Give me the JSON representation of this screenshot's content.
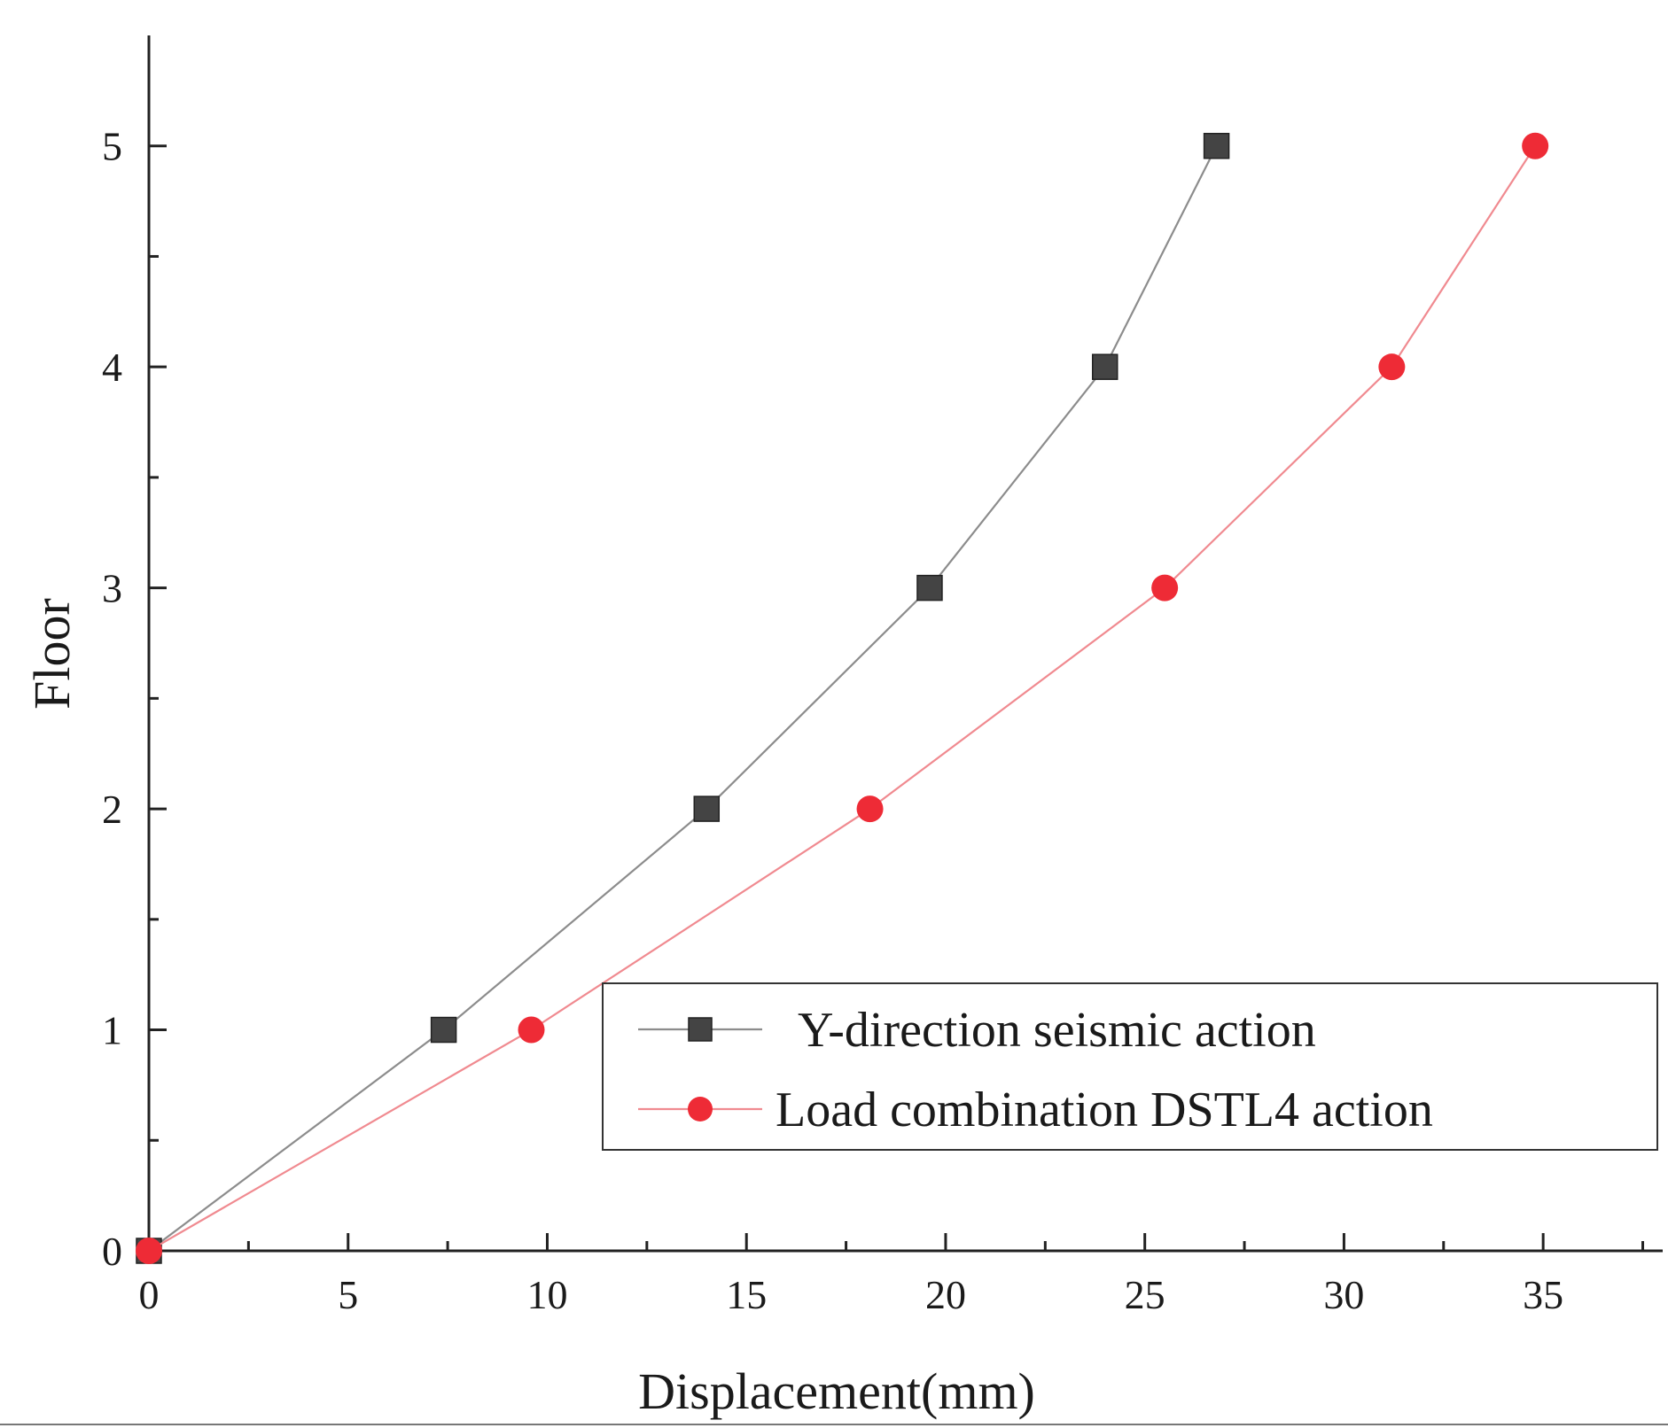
{
  "chart_data": {
    "type": "line",
    "title": "",
    "xlabel": "Displacement(mm)",
    "ylabel": "Floor",
    "xlim": [
      0,
      38
    ],
    "ylim": [
      0,
      5.5
    ],
    "x_ticks": [
      0,
      5,
      10,
      15,
      20,
      25,
      30,
      35
    ],
    "y_ticks": [
      0,
      1,
      2,
      3,
      4,
      5
    ],
    "grid": false,
    "legend_position": "bottom-right",
    "series": [
      {
        "name": "Y-direction seismic action",
        "marker": "square",
        "color": "#444444",
        "line_color": "#8c8c8c",
        "x": [
          0,
          7.4,
          14.0,
          19.6,
          24.0,
          26.8
        ],
        "y": [
          0,
          1,
          2,
          3,
          4,
          5
        ]
      },
      {
        "name": "Load combination DSTL4 action",
        "marker": "circle",
        "color": "#ee2b36",
        "line_color": "#f08a90",
        "x": [
          0,
          9.6,
          18.1,
          25.5,
          31.2,
          34.8
        ],
        "y": [
          0,
          1,
          2,
          3,
          4,
          5
        ]
      }
    ]
  }
}
